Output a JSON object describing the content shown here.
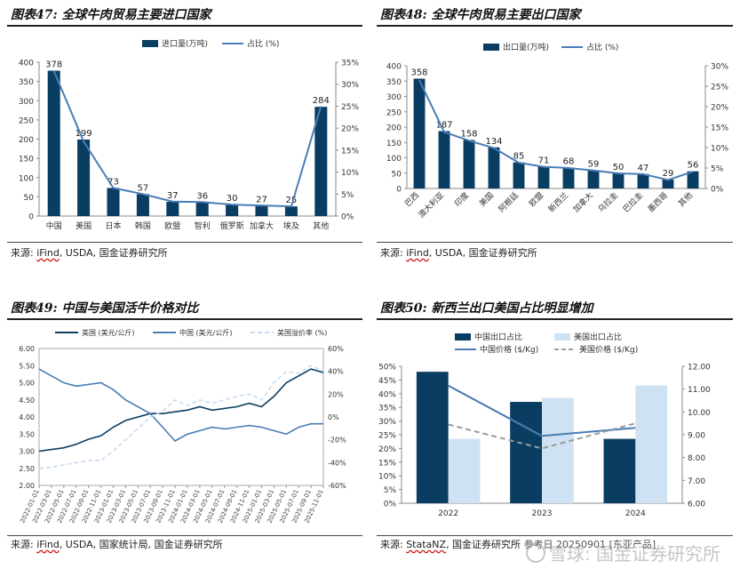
{
  "charts": {
    "c47": {
      "title": "图表47: 全球牛肉贸易主要进口国家",
      "source_prefix": "来源: ",
      "source_link": "iFind",
      "source_rest": ", USDA, 国金证券研究所"
    },
    "c48": {
      "title": "图表48: 全球牛肉贸易主要出口国家",
      "source_prefix": "来源: ",
      "source_link": "iFind",
      "source_rest": ", USDA, 国金证券研究所"
    },
    "c49": {
      "title": "图表49: 中国与美国活牛价格对比",
      "source_prefix": "来源: ",
      "source_link": "iFind",
      "source_rest": ", USDA, 国家统计局, 国金证券研究所"
    },
    "c50": {
      "title": "图表50: 新西兰出口美国占比明显增加",
      "source_prefix": "来源: ",
      "source_link": "StataNZ",
      "source_rest": ", 国金证券研究所",
      "source_tail": "参考日 20250901 [东亚产品]"
    }
  },
  "watermark": "雪球: 国金证券研究所",
  "colors": {
    "navy": "#0a3d62",
    "blue": "#4a7db5",
    "lightblue": "#cfe2f3",
    "gray": "#9a9a9a"
  },
  "chart_data": [
    {
      "id": "c47",
      "type": "bar",
      "categories": [
        "中国",
        "美国",
        "日本",
        "韩国",
        "欧盟",
        "智利",
        "俄罗斯",
        "加拿大",
        "埃及",
        "其他"
      ],
      "series": [
        {
          "name": "进口量(万吨)",
          "axis": "left",
          "type": "bar",
          "values": [
            378,
            199,
            73,
            57,
            37,
            36,
            30,
            27,
            25,
            284
          ]
        },
        {
          "name": "占比 (%)",
          "axis": "right",
          "type": "line",
          "values": [
            33,
            17,
            6.4,
            5,
            3.3,
            3.2,
            2.6,
            2.4,
            2.2,
            25
          ]
        }
      ],
      "ylim_left": [
        0,
        400
      ],
      "yticks_left": [
        0,
        50,
        100,
        150,
        200,
        250,
        300,
        350,
        400
      ],
      "ylim_right": [
        0,
        35
      ],
      "yticks_right": [
        "0%",
        "5%",
        "10%",
        "15%",
        "20%",
        "25%",
        "30%",
        "35%"
      ],
      "legend": "top-center"
    },
    {
      "id": "c48",
      "type": "bar",
      "categories": [
        "巴西",
        "澳大利亚",
        "印度",
        "美国",
        "阿根廷",
        "欧盟",
        "新西兰",
        "加拿大",
        "乌拉圭",
        "巴拉圭",
        "墨西哥",
        "其他"
      ],
      "series": [
        {
          "name": "出口量(万吨)",
          "axis": "left",
          "type": "bar",
          "values": [
            358,
            187,
            158,
            134,
            85,
            71,
            68,
            59,
            50,
            47,
            29,
            56
          ]
        },
        {
          "name": "占比 (%)",
          "axis": "right",
          "type": "line",
          "values": [
            26.5,
            13.8,
            11.7,
            9.9,
            6.3,
            5.3,
            5.0,
            4.4,
            3.7,
            3.5,
            2.1,
            4.1
          ]
        }
      ],
      "ylim_left": [
        0,
        400
      ],
      "yticks_left": [
        0,
        50,
        100,
        150,
        200,
        250,
        300,
        350,
        400
      ],
      "ylim_right": [
        0,
        30
      ],
      "yticks_right": [
        "0%",
        "5%",
        "10%",
        "15%",
        "20%",
        "25%",
        "30%"
      ],
      "legend": "top-center"
    },
    {
      "id": "c49",
      "type": "line",
      "x": [
        "2022-01-01",
        "2022-03-01",
        "2022-05-01",
        "2022-07-01",
        "2022-09-01",
        "2022-11-01",
        "2023-01-01",
        "2023-03-01",
        "2023-05-01",
        "2023-07-01",
        "2023-09-01",
        "2023-11-01",
        "2024-01-01",
        "2024-03-01",
        "2024-05-01",
        "2024-07-01",
        "2024-09-01",
        "2024-11-01",
        "2025-01-01",
        "2025-03-01",
        "2025-05-01",
        "2025-07-01",
        "2025-09-01",
        "2025-11-01"
      ],
      "series": [
        {
          "name": "美国 (美元/公斤)",
          "axis": "left",
          "style": "solid-dark",
          "values": [
            3.0,
            3.05,
            3.1,
            3.2,
            3.35,
            3.45,
            3.7,
            3.9,
            4.0,
            4.1,
            4.1,
            4.15,
            4.2,
            4.3,
            4.2,
            4.25,
            4.3,
            4.4,
            4.3,
            4.6,
            5.0,
            5.2,
            5.4,
            5.3
          ]
        },
        {
          "name": "中国 (美元/公斤)",
          "axis": "left",
          "style": "solid-blue",
          "values": [
            5.4,
            5.2,
            5.0,
            4.9,
            4.95,
            5.0,
            4.8,
            4.5,
            4.3,
            4.1,
            3.7,
            3.3,
            3.5,
            3.6,
            3.7,
            3.65,
            3.7,
            3.75,
            3.7,
            3.6,
            3.5,
            3.7,
            3.8,
            3.8
          ]
        },
        {
          "name": "美国溢价率 (%)",
          "axis": "right",
          "style": "dashed-light",
          "values": [
            -45,
            -44,
            -42,
            -40,
            -38,
            -38,
            -30,
            -20,
            -10,
            0,
            5,
            15,
            10,
            15,
            12,
            15,
            18,
            20,
            15,
            30,
            40,
            38,
            45,
            40
          ]
        }
      ],
      "ylim_left": [
        2.0,
        6.0
      ],
      "yticks_left": [
        "2.00",
        "2.50",
        "3.00",
        "3.50",
        "4.00",
        "4.50",
        "5.00",
        "5.50",
        "6.00"
      ],
      "ylim_right": [
        -60,
        60
      ],
      "yticks_right": [
        "-60%",
        "-40%",
        "-20%",
        "0%",
        "20%",
        "40%",
        "60%"
      ],
      "legend": "top"
    },
    {
      "id": "c50",
      "type": "bar",
      "categories": [
        "2022",
        "2023",
        "2024"
      ],
      "series": [
        {
          "name": "中国出口占比",
          "axis": "left",
          "type": "bar",
          "values": [
            48,
            37,
            23.5
          ]
        },
        {
          "name": "美国出口占比",
          "axis": "left",
          "type": "bar",
          "values": [
            23.5,
            38.5,
            43
          ]
        },
        {
          "name": "中国价格 ($/Kg)",
          "axis": "right",
          "type": "line",
          "values": [
            11.15,
            8.95,
            9.3
          ]
        },
        {
          "name": "美国价格 ($/Kg)",
          "axis": "right",
          "type": "line-dashed",
          "values": [
            9.45,
            8.4,
            9.5
          ]
        }
      ],
      "ylim_left": [
        0,
        50
      ],
      "yticks_left": [
        "0%",
        "5%",
        "10%",
        "15%",
        "20%",
        "25%",
        "30%",
        "35%",
        "40%",
        "45%",
        "50%"
      ],
      "ylim_right": [
        6.0,
        12.0
      ],
      "yticks_right": [
        "6.00",
        "7.00",
        "8.00",
        "9.00",
        "10.00",
        "11.00",
        "12.00"
      ],
      "legend": "top"
    }
  ]
}
